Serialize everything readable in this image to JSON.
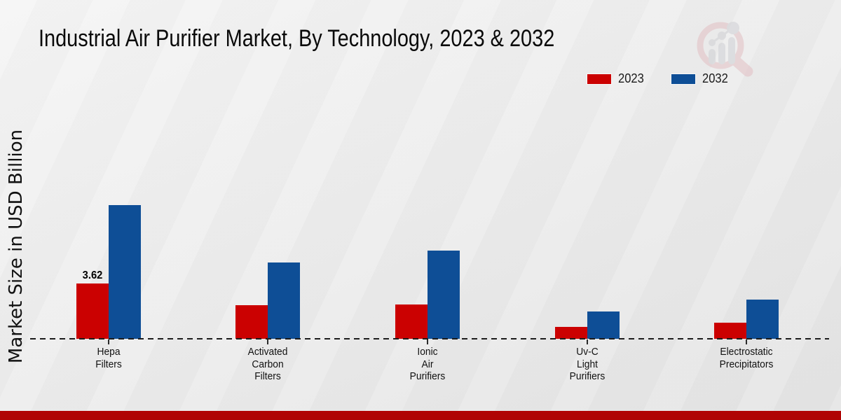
{
  "title": "Industrial Air Purifier Market, By Technology, 2023 & 2032",
  "ylabel": "Market Size in USD Billion",
  "chart_data": {
    "type": "bar",
    "categories": [
      "Hepa Filters",
      "Activated Carbon Filters",
      "Ionic Air Purifiers",
      "Uv-C Light Purifiers",
      "Electrostatic Precipitators"
    ],
    "series": [
      {
        "name": "2023",
        "color": "#cb0101",
        "values": [
          3.62,
          2.2,
          2.25,
          0.8,
          1.05
        ]
      },
      {
        "name": "2032",
        "color": "#0e4e96",
        "values": [
          8.75,
          5.0,
          5.78,
          1.78,
          2.55
        ]
      }
    ],
    "annotations": [
      {
        "series_index": 0,
        "category_index": 0,
        "text": "3.62"
      }
    ],
    "title": "Industrial Air Purifier Market, By Technology, 2023 & 2032",
    "xlabel": "",
    "ylabel": "Market Size in USD Billion",
    "ylim": [
      0,
      10
    ],
    "grid": false,
    "baseline_style": "dashed",
    "legend_position": "top-right"
  },
  "legend": {
    "items": [
      {
        "label": "2023",
        "color": "#cb0101"
      },
      {
        "label": "2032",
        "color": "#0e4e96"
      }
    ]
  },
  "logo": {
    "name": "magnifier-bar-chart-logo",
    "ring_color": "#e2bfc3",
    "bar_color": "#cfd0d4"
  },
  "footer": {
    "bar_color": "#b00404"
  }
}
